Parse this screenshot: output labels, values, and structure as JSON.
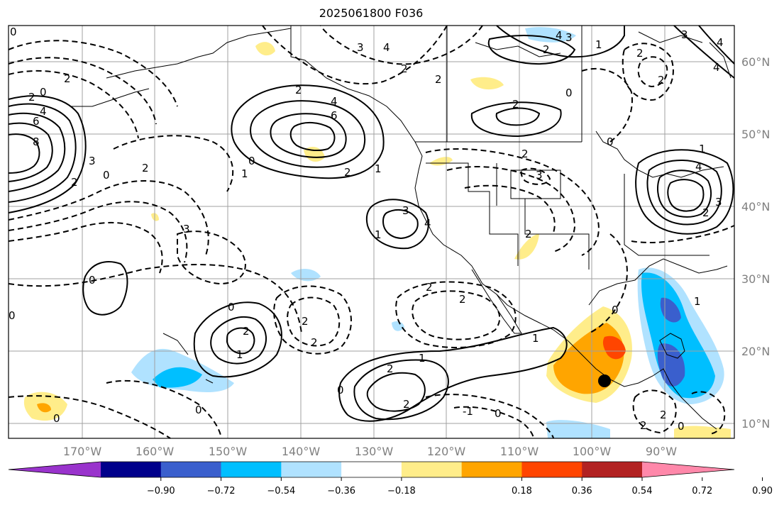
{
  "title": "2025061800 F036",
  "lon_ticks": [
    "170°W",
    "160°W",
    "150°W",
    "140°W",
    "130°W",
    "120°W",
    "110°W",
    "100°W",
    "90°W"
  ],
  "lat_ticks": [
    "60°N",
    "50°N",
    "40°N",
    "30°N",
    "20°N",
    "10°N"
  ],
  "colorbar": {
    "colors": [
      "#9933cc",
      "#00008b",
      "#3a5fcd",
      "#00bfff",
      "#b0e2ff",
      "#ffffff",
      "#ffed8a",
      "#ffa500",
      "#ff4500",
      "#b22222",
      "#ff88aa"
    ],
    "tick_labels": [
      "−0.90",
      "−0.72",
      "−0.54",
      "−0.36",
      "−0.18",
      "0.18",
      "0.36",
      "0.54",
      "0.72",
      "0.90"
    ]
  },
  "contour_labels": [
    "0",
    "2",
    "4",
    "6",
    "8",
    "1",
    "3",
    "-1",
    "-2",
    "-3",
    "-4"
  ],
  "colors": {
    "grid": "#a0a0a0",
    "contour": "#000000",
    "coast": "#000000",
    "axis_text": "#808080"
  },
  "marker": "black-dot"
}
